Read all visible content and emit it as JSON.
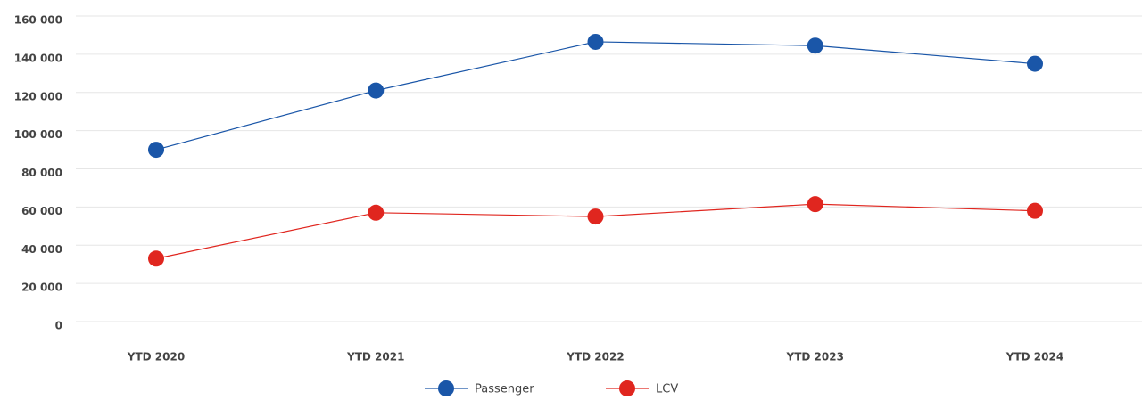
{
  "chart_data": {
    "type": "line",
    "categories": [
      "YTD 2020",
      "YTD 2021",
      "YTD 2022",
      "YTD 2023",
      "YTD 2024"
    ],
    "series": [
      {
        "name": "Passenger",
        "color": "#1a56a8",
        "values": [
          90000,
          121000,
          146500,
          144500,
          135000
        ]
      },
      {
        "name": "LCV",
        "color": "#e0261f",
        "values": [
          33000,
          57000,
          55000,
          61500,
          58000
        ]
      }
    ],
    "ylim": [
      0,
      160000
    ],
    "yticks": [
      0,
      {
        "value": 20000,
        "label": "20 000"
      },
      {
        "value": 40000,
        "label": "40 000"
      },
      {
        "value": 60000,
        "label": "60 000"
      },
      {
        "value": 80000,
        "label": "80 000"
      },
      {
        "value": 100000,
        "label": "100 000"
      },
      {
        "value": 120000,
        "label": "120 000"
      },
      {
        "value": 140000,
        "label": "140 000"
      },
      {
        "value": 160000,
        "label": "160 000"
      }
    ],
    "grid": true
  }
}
